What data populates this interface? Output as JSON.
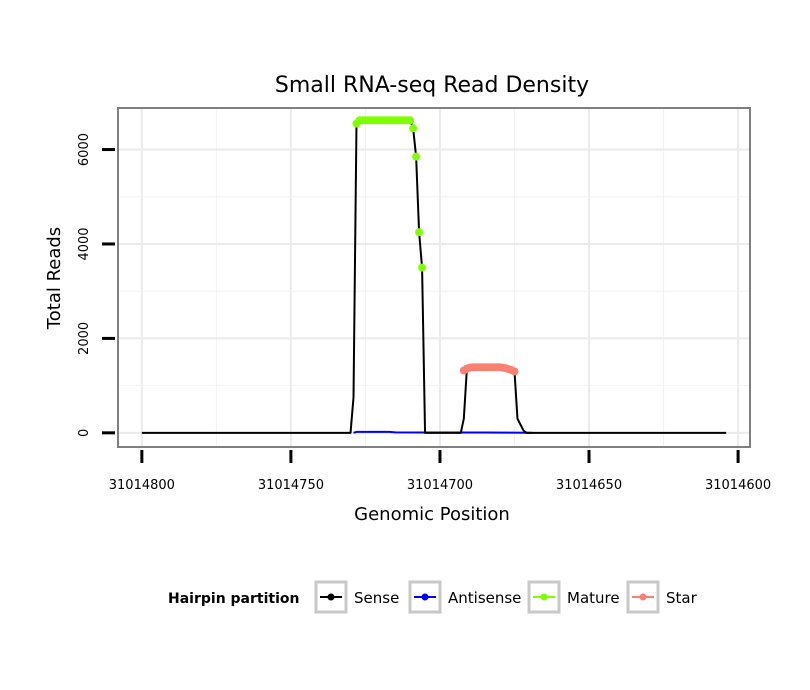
{
  "chart_data": {
    "type": "line",
    "title": "Small RNA-seq Read Density",
    "xlabel": "Genomic Position",
    "ylabel": "Total Reads",
    "x_reversed": true,
    "xlim": [
      31014808,
      31014596
    ],
    "ylim": [
      -300,
      6880
    ],
    "x_ticks": [
      31014800,
      31014750,
      31014700,
      31014650,
      31014600
    ],
    "x_tick_labels": [
      "31014800",
      "31014750",
      "31014700",
      "31014650",
      "31014600"
    ],
    "y_ticks": [
      0,
      2000,
      4000,
      6000
    ],
    "y_tick_labels": [
      "0",
      "2000",
      "4000",
      "6000"
    ],
    "legend": {
      "title": "Hairpin partition",
      "placement": "bottom",
      "entries": [
        {
          "label": "Sense",
          "color": "#000000"
        },
        {
          "label": "Antisense",
          "color": "#0000ff"
        },
        {
          "label": "Mature",
          "color": "#7fff00"
        },
        {
          "label": "Star",
          "color": "#fa8072"
        }
      ]
    },
    "series": [
      {
        "name": "Sense",
        "color": "#000000",
        "points": [
          [
            31014800,
            0
          ],
          [
            31014730,
            0
          ],
          [
            31014729,
            750
          ],
          [
            31014728,
            6550
          ],
          [
            31014727,
            6620
          ],
          [
            31014710,
            6620
          ],
          [
            31014709,
            6450
          ],
          [
            31014708,
            5850
          ],
          [
            31014707,
            4250
          ],
          [
            31014706,
            3500
          ],
          [
            31014705,
            0
          ],
          [
            31014693,
            0
          ],
          [
            31014692,
            300
          ],
          [
            31014691,
            1320
          ],
          [
            31014690,
            1360
          ],
          [
            31014676,
            1360
          ],
          [
            31014675,
            1300
          ],
          [
            31014674,
            300
          ],
          [
            31014672,
            50
          ],
          [
            31014671,
            0
          ],
          [
            31014604,
            0
          ]
        ]
      },
      {
        "name": "Antisense",
        "color": "#0000ff",
        "points": [
          [
            31014729,
            0
          ],
          [
            31014728,
            20
          ],
          [
            31014717,
            20
          ],
          [
            31014715,
            10
          ],
          [
            31014700,
            8
          ],
          [
            31014685,
            6
          ],
          [
            31014670,
            3
          ],
          [
            31014669,
            0
          ]
        ]
      },
      {
        "name": "Mature",
        "color": "#7fff00",
        "points": [
          [
            31014728,
            6550
          ],
          [
            31014727,
            6620
          ],
          [
            31014726,
            6620
          ],
          [
            31014725,
            6620
          ],
          [
            31014724,
            6620
          ],
          [
            31014723,
            6620
          ],
          [
            31014722,
            6620
          ],
          [
            31014721,
            6620
          ],
          [
            31014720,
            6620
          ],
          [
            31014719,
            6620
          ],
          [
            31014718,
            6620
          ],
          [
            31014717,
            6620
          ],
          [
            31014716,
            6620
          ],
          [
            31014715,
            6620
          ],
          [
            31014714,
            6620
          ],
          [
            31014713,
            6620
          ],
          [
            31014712,
            6620
          ],
          [
            31014711,
            6620
          ],
          [
            31014710,
            6620
          ],
          [
            31014709,
            6450
          ],
          [
            31014708,
            5850
          ],
          [
            31014707,
            4250
          ],
          [
            31014706,
            3500
          ]
        ]
      },
      {
        "name": "Star",
        "color": "#fa8072",
        "points": [
          [
            31014692,
            1320
          ],
          [
            31014691,
            1360
          ],
          [
            31014690,
            1380
          ],
          [
            31014689,
            1390
          ],
          [
            31014688,
            1390
          ],
          [
            31014687,
            1390
          ],
          [
            31014686,
            1390
          ],
          [
            31014685,
            1390
          ],
          [
            31014684,
            1390
          ],
          [
            31014683,
            1390
          ],
          [
            31014682,
            1390
          ],
          [
            31014681,
            1390
          ],
          [
            31014680,
            1390
          ],
          [
            31014679,
            1380
          ],
          [
            31014678,
            1370
          ],
          [
            31014677,
            1350
          ],
          [
            31014676,
            1330
          ],
          [
            31014675,
            1300
          ]
        ]
      }
    ],
    "grid": true
  }
}
